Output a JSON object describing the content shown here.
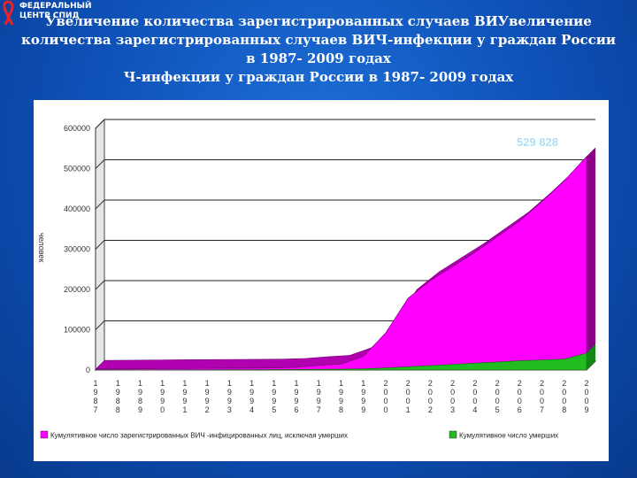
{
  "logo": {
    "line1": "ФЕДЕРАЛЬНЫЙ",
    "line2": "ЦЕНТР СПИД"
  },
  "title_lines": [
    "Увеличение количества зарегистрированных случаев ВИУвеличение",
    "количества зарегистрированных случаев ВИЧ-инфекции у граждан России",
    "в 1987- 2009 годах",
    "Ч-инфекции у граждан России в 1987- 2009 годах"
  ],
  "chart_data": {
    "type": "area",
    "title": "",
    "xlabel": "",
    "ylabel": "человек",
    "ylim": [
      0,
      600000
    ],
    "yticks": [
      "0",
      "100000",
      "200000",
      "300000",
      "400000",
      "500000",
      "600000"
    ],
    "grid": true,
    "legend_position": "bottom",
    "annotation": "529 828",
    "categories": [
      "1987",
      "1988",
      "1989",
      "1990",
      "1991",
      "1992",
      "1993",
      "1994",
      "1995",
      "1996",
      "1997",
      "1998",
      "1999",
      "2000",
      "2001",
      "2002",
      "2003",
      "2004",
      "2005",
      "2006",
      "2007",
      "2008",
      "2009"
    ],
    "series": [
      {
        "name": "Кумулятивное число зарегистрированных ВИЧ -инфицированных лиц, исключая умерших",
        "color": "#ff00ff",
        "values": [
          2000,
          2300,
          2800,
          3300,
          3800,
          4100,
          4300,
          4600,
          5100,
          6600,
          11000,
          14500,
          34000,
          92000,
          178000,
          222000,
          257000,
          292000,
          331000,
          370000,
          418000,
          470000,
          529828
        ]
      },
      {
        "name": "Кумулятивное число умерших",
        "color": "#22bb22",
        "values": [
          50,
          100,
          200,
          300,
          400,
          500,
          600,
          800,
          1000,
          1300,
          1700,
          2200,
          3000,
          5000,
          8000,
          11000,
          14000,
          17000,
          20000,
          23000,
          25000,
          27000,
          42000
        ]
      }
    ]
  }
}
